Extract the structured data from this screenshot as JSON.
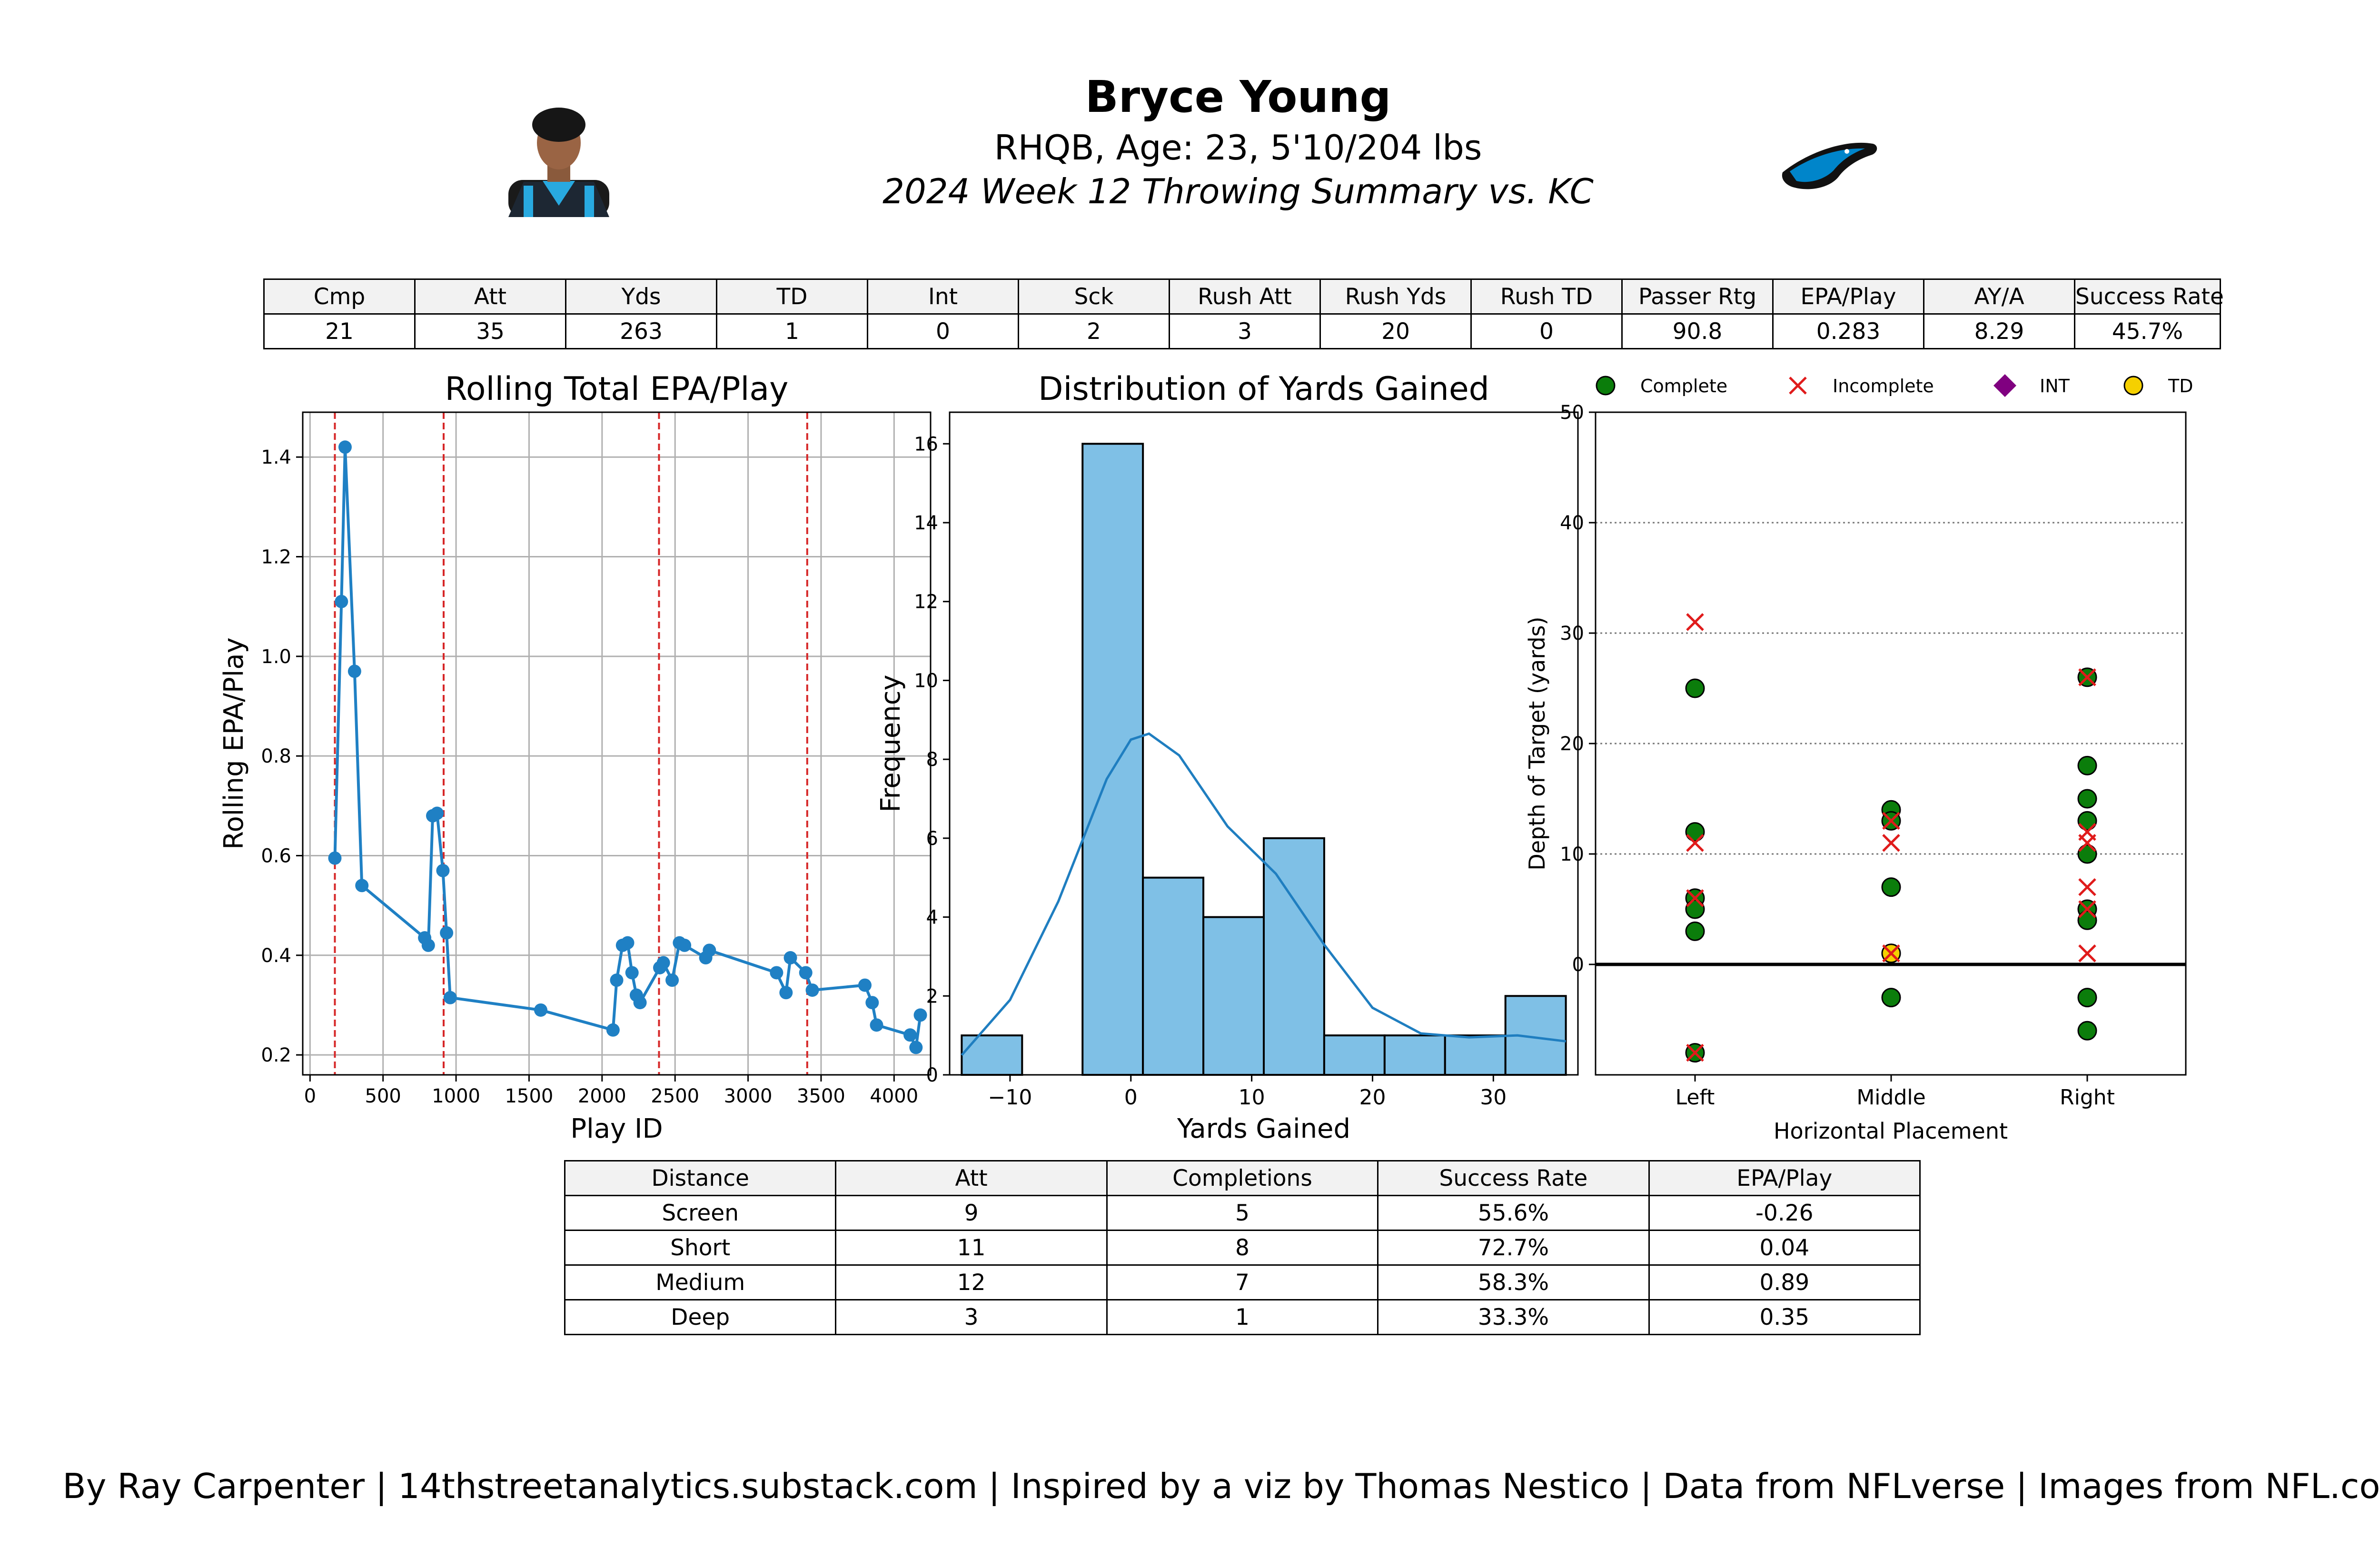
{
  "header": {
    "title": "Bryce Young",
    "subtitle": "RHQB, Age: 23, 5'10/204 lbs",
    "subtitle2": "2024 Week 12 Throwing Summary vs. KC"
  },
  "stats_table": {
    "headers": [
      "Cmp",
      "Att",
      "Yds",
      "TD",
      "Int",
      "Sck",
      "Rush Att",
      "Rush Yds",
      "Rush TD",
      "Passer Rtg",
      "EPA/Play",
      "AY/A",
      "Success Rate"
    ],
    "values": [
      "21",
      "35",
      "263",
      "1",
      "0",
      "2",
      "3",
      "20",
      "0",
      "90.8",
      "0.283",
      "8.29",
      "45.7%"
    ]
  },
  "distance_table": {
    "headers": [
      "Distance",
      "Att",
      "Completions",
      "Success Rate",
      "EPA/Play"
    ],
    "rows": [
      [
        "Screen",
        "9",
        "5",
        "55.6%",
        "-0.26"
      ],
      [
        "Short",
        "11",
        "8",
        "72.7%",
        "0.04"
      ],
      [
        "Medium",
        "12",
        "7",
        "58.3%",
        "0.89"
      ],
      [
        "Deep",
        "3",
        "1",
        "33.3%",
        "0.35"
      ]
    ]
  },
  "footer": "By Ray Carpenter | 14thstreetanalytics.substack.com | Inspired by a viz by Thomas Nestico | Data from NFLverse | Images from NFL.com",
  "images": {
    "headshot": "player-headshot",
    "logo": "panthers-logo"
  },
  "colors": {
    "line": "#1f80c4",
    "hist": "#7fc0e6",
    "vline": "#d62728",
    "complete": "#0b7d0b",
    "incomplete": "#e01b1b",
    "int": "#800080",
    "td": "#f5d000"
  },
  "chart_data": [
    {
      "type": "line",
      "title": "Rolling Total EPA/Play",
      "xlabel": "Play ID",
      "ylabel": "Rolling EPA/Play",
      "xlim": [
        -50,
        4250
      ],
      "ylim": [
        0.16,
        1.49
      ],
      "xticks": [
        0,
        500,
        1000,
        1500,
        2000,
        2500,
        3000,
        3500,
        4000
      ],
      "yticks": [
        0.2,
        0.4,
        0.6,
        0.8,
        1.0,
        1.2,
        1.4
      ],
      "grid": true,
      "vlines": [
        170,
        915,
        2390,
        3405
      ],
      "points": [
        [
          170,
          0.595
        ],
        [
          215,
          1.11
        ],
        [
          240,
          1.42
        ],
        [
          305,
          0.97
        ],
        [
          355,
          0.54
        ],
        [
          785,
          0.435
        ],
        [
          810,
          0.42
        ],
        [
          840,
          0.68
        ],
        [
          870,
          0.685
        ],
        [
          910,
          0.57
        ],
        [
          935,
          0.445
        ],
        [
          960,
          0.315
        ],
        [
          1580,
          0.29
        ],
        [
          2075,
          0.25
        ],
        [
          2100,
          0.35
        ],
        [
          2140,
          0.42
        ],
        [
          2175,
          0.425
        ],
        [
          2205,
          0.365
        ],
        [
          2235,
          0.32
        ],
        [
          2260,
          0.305
        ],
        [
          2395,
          0.375
        ],
        [
          2420,
          0.385
        ],
        [
          2480,
          0.35
        ],
        [
          2530,
          0.425
        ],
        [
          2565,
          0.42
        ],
        [
          2710,
          0.395
        ],
        [
          2735,
          0.41
        ],
        [
          3195,
          0.365
        ],
        [
          3260,
          0.325
        ],
        [
          3290,
          0.395
        ],
        [
          3395,
          0.365
        ],
        [
          3440,
          0.33
        ],
        [
          3800,
          0.34
        ],
        [
          3850,
          0.305
        ],
        [
          3880,
          0.26
        ],
        [
          4110,
          0.24
        ],
        [
          4150,
          0.215
        ],
        [
          4180,
          0.28
        ]
      ]
    },
    {
      "type": "bar",
      "title": "Distribution of Yards Gained",
      "xlabel": "Yards Gained",
      "ylabel": "Frequency",
      "xlim": [
        -15,
        37
      ],
      "ylim": [
        0,
        16.8
      ],
      "xticks": [
        -10,
        0,
        10,
        20,
        30
      ],
      "xtick_labels": [
        "−10",
        "0",
        "10",
        "20",
        "30"
      ],
      "yticks": [
        0,
        2,
        4,
        6,
        8,
        10,
        12,
        14,
        16
      ],
      "bin_edges": [
        -14,
        -9,
        -4,
        1,
        6,
        11,
        16,
        21,
        26,
        31,
        36
      ],
      "counts": [
        1,
        0,
        16,
        5,
        4,
        6,
        1,
        1,
        1,
        2
      ],
      "kde": [
        [
          -14,
          0.5
        ],
        [
          -10,
          1.9
        ],
        [
          -6,
          4.4
        ],
        [
          -2,
          7.5
        ],
        [
          0,
          8.5
        ],
        [
          1.5,
          8.65
        ],
        [
          4,
          8.1
        ],
        [
          8,
          6.3
        ],
        [
          12,
          5.1
        ],
        [
          16,
          3.3
        ],
        [
          20,
          1.7
        ],
        [
          24,
          1.05
        ],
        [
          28,
          0.95
        ],
        [
          32,
          1.0
        ],
        [
          36,
          0.85
        ]
      ]
    },
    {
      "type": "scatter",
      "xlabel": "Horizontal Placement",
      "ylabel": "Depth of Target (yards)",
      "categories": [
        "Left",
        "Middle",
        "Right"
      ],
      "ylim": [
        -10,
        50
      ],
      "yticks": [
        0,
        10,
        20,
        30,
        40,
        50
      ],
      "legend": [
        "Complete",
        "Incomplete",
        "INT",
        "TD"
      ],
      "legend_position": "top",
      "complete": [
        [
          "Left",
          25
        ],
        [
          "Left",
          12
        ],
        [
          "Left",
          6
        ],
        [
          "Left",
          5
        ],
        [
          "Left",
          3
        ],
        [
          "Left",
          -8
        ],
        [
          "Middle",
          14
        ],
        [
          "Middle",
          13
        ],
        [
          "Middle",
          7
        ],
        [
          "Middle",
          1
        ],
        [
          "Middle",
          -3
        ],
        [
          "Right",
          26
        ],
        [
          "Right",
          18
        ],
        [
          "Right",
          15
        ],
        [
          "Right",
          13
        ],
        [
          "Right",
          10
        ],
        [
          "Right",
          5
        ],
        [
          "Right",
          4
        ],
        [
          "Right",
          -3
        ],
        [
          "Right",
          -6
        ]
      ],
      "incomplete": [
        [
          "Left",
          31
        ],
        [
          "Left",
          11
        ],
        [
          "Left",
          6
        ],
        [
          "Left",
          -8
        ],
        [
          "Middle",
          13
        ],
        [
          "Middle",
          11
        ],
        [
          "Middle",
          1
        ],
        [
          "Right",
          26
        ],
        [
          "Right",
          12
        ],
        [
          "Right",
          11
        ],
        [
          "Right",
          7
        ],
        [
          "Right",
          5
        ],
        [
          "Right",
          1
        ]
      ],
      "td": [
        [
          "Middle",
          1
        ]
      ],
      "int": []
    }
  ]
}
